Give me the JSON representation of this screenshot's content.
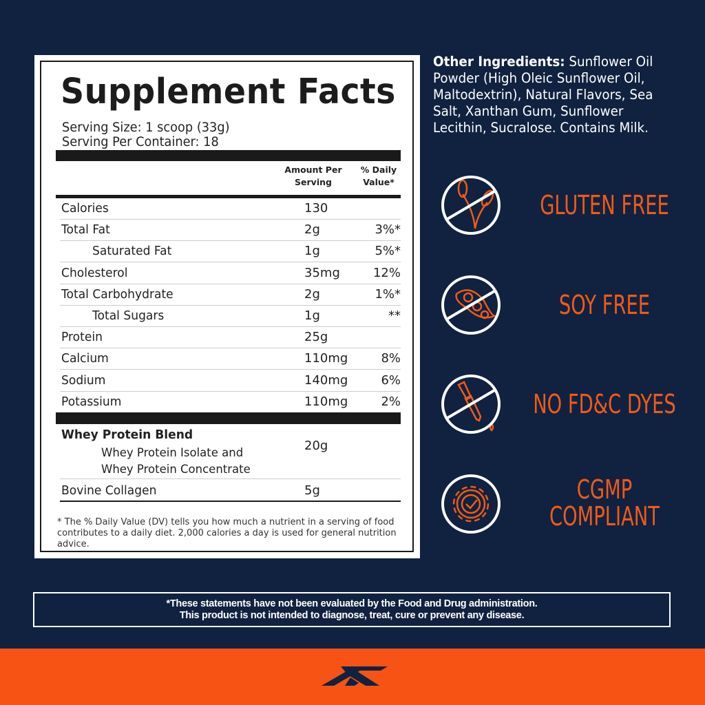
{
  "facts": {
    "title": "Supplement Facts",
    "serving_size": "Serving Size: 1 scoop (33g)",
    "servings_per_container": "Serving Per Container: 18",
    "col_amount": "Amount Per Serving",
    "col_dv": "% Daily Value*",
    "rows": [
      {
        "name": "Calories",
        "amount": "130",
        "dv": ""
      },
      {
        "name": "Total Fat",
        "amount": "2g",
        "dv": "3%*"
      },
      {
        "name": "Saturated Fat",
        "amount": "1g",
        "dv": "5%*"
      },
      {
        "name": "Cholesterol",
        "amount": "35mg",
        "dv": "12%"
      },
      {
        "name": "Total Carbohydrate",
        "amount": "2g",
        "dv": "1%*"
      },
      {
        "name": "Total Sugars",
        "amount": "1g",
        "dv": "**"
      },
      {
        "name": "Protein",
        "amount": "25g",
        "dv": ""
      },
      {
        "name": "Calcium",
        "amount": "110mg",
        "dv": "8%"
      },
      {
        "name": "Sodium",
        "amount": "140mg",
        "dv": "6%"
      },
      {
        "name": "Potassium",
        "amount": "110mg",
        "dv": "2%"
      }
    ],
    "blend": {
      "name": "Whey Protein Blend",
      "sub1": "Whey Protein Isolate and",
      "sub2": "Whey Protein Concentrate",
      "amount": "20g"
    },
    "collagen": {
      "name": "Bovine Collagen",
      "amount": "5g"
    },
    "footnote": "* The % Daily Value (DV) tells you how much a nutrient in a serving of food contributes to a daily diet. 2,000 calories a day is used for general nutrition advice."
  },
  "other": {
    "label": "Other Ingredients:",
    "text": " Sunflower Oil Powder (High Oleic Sunflower Oil, Maltodextrin), Natural Flavors, Sea Salt, Xanthan Gum, Sunflower Lecithin, Sucralose. Contains Milk."
  },
  "badges": [
    {
      "icon": "no-wheat-icon",
      "label": "GLUTEN FREE"
    },
    {
      "icon": "no-soy-icon",
      "label": "SOY FREE"
    },
    {
      "icon": "no-dropper-icon",
      "label": "NO FD&C DYES"
    },
    {
      "icon": "gear-check-icon",
      "label": "CGMP COMPLIANT"
    }
  ],
  "disclaimer": {
    "line1": "*These statements have not been evaluated by the Food and Drug administration.",
    "line2": "This product is not intended to diagnose, treat, cure or prevent any disease."
  },
  "colors": {
    "background": "#10223f",
    "accent": "#f65314",
    "label_text": "#f05a1a"
  }
}
